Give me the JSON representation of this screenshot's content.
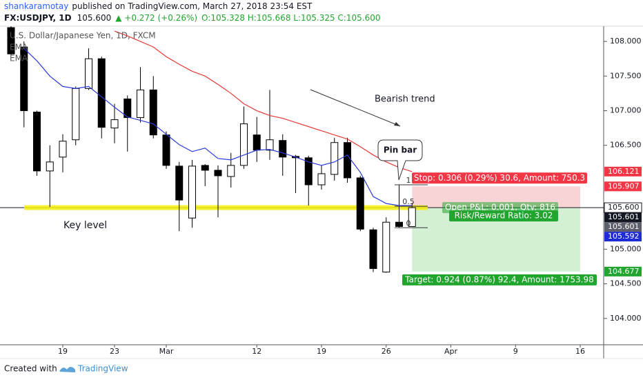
{
  "header": {
    "author": "shankaramotay",
    "published": "published on TradingView.com, March 27, 2018 23:54 EST",
    "symbol": "FX:USDJPY, 1D",
    "last": "105.600",
    "change": "▲ +0.272 (+0.26%)",
    "ohlc": "O:105.328 H:105.668 L:105.325 C:105.600"
  },
  "footer": {
    "created": "Created with",
    "brand": "TradingView"
  },
  "chart_data": {
    "type": "candlestick",
    "instrument": "U.S. Dollar/Japanese Yen, 1D, FXCM",
    "categories": [
      null,
      null,
      null,
      null,
      "19",
      null,
      null,
      null,
      "23",
      null,
      null,
      null,
      "Mar",
      null,
      null,
      null,
      null,
      null,
      null,
      "12",
      null,
      null,
      null,
      null,
      "19",
      null,
      null,
      null,
      null,
      "26",
      null,
      null,
      null,
      null,
      "Apr",
      null,
      null,
      null,
      null,
      "9",
      null,
      null,
      null,
      null,
      "16"
    ],
    "open": [
      108.2,
      107.92,
      106.98,
      106.13,
      106.33,
      106.58,
      107.32,
      107.75,
      106.75,
      107.17,
      106.9,
      107.3,
      106.65,
      106.2,
      105.45,
      106.21,
      106.14,
      106.05,
      106.21,
      106.65,
      106.43,
      106.57,
      106.34,
      106.32,
      105.93,
      106.08,
      106.54,
      106.03,
      105.28,
      104.67,
      105.39,
      105.328,
      null,
      null,
      null,
      null,
      null,
      null,
      null,
      null,
      null,
      null,
      null,
      null,
      null
    ],
    "high": [
      108.22,
      108.0,
      107.0,
      106.5,
      106.66,
      107.35,
      107.9,
      107.78,
      107.1,
      107.22,
      107.63,
      107.5,
      106.7,
      106.26,
      106.29,
      106.23,
      106.21,
      106.39,
      107.06,
      106.91,
      107.3,
      106.66,
      106.36,
      106.35,
      106.21,
      106.61,
      106.61,
      106.06,
      105.31,
      105.46,
      105.93,
      105.668,
      null,
      null,
      null,
      null,
      null,
      null,
      null,
      null,
      null,
      null,
      null,
      null,
      null
    ],
    "low": [
      107.8,
      106.76,
      106.06,
      105.61,
      106.11,
      106.5,
      107.3,
      106.6,
      106.53,
      106.41,
      106.83,
      106.6,
      106.16,
      105.26,
      105.31,
      105.91,
      105.46,
      105.89,
      106.16,
      106.26,
      106.29,
      106.06,
      105.81,
      105.63,
      105.86,
      105.99,
      105.96,
      105.26,
      104.67,
      104.66,
      105.31,
      105.325,
      null,
      null,
      null,
      null,
      null,
      null,
      null,
      null,
      null,
      null,
      null,
      null,
      null
    ],
    "close": [
      107.82,
      107.0,
      106.13,
      106.26,
      106.56,
      107.32,
      107.75,
      106.76,
      106.87,
      106.9,
      107.3,
      106.65,
      106.21,
      105.71,
      106.2,
      106.14,
      106.06,
      106.21,
      106.81,
      106.43,
      106.58,
      106.33,
      106.32,
      105.93,
      106.09,
      106.54,
      106.03,
      105.29,
      104.72,
      105.39,
      105.328,
      105.6,
      null,
      null,
      null,
      null,
      null,
      null,
      null,
      null,
      null,
      null,
      null,
      null,
      null
    ],
    "series": [
      {
        "name": "EMA",
        "color": "#2b3bd6",
        "values": [
          null,
          107.9,
          107.72,
          107.5,
          107.35,
          107.32,
          107.35,
          107.2,
          107.05,
          106.91,
          106.86,
          106.81,
          106.66,
          106.51,
          106.41,
          106.46,
          106.31,
          106.29,
          106.36,
          106.43,
          106.44,
          106.39,
          106.33,
          106.26,
          106.21,
          106.26,
          106.36,
          106.11,
          105.76,
          105.66,
          105.63,
          105.63,
          null,
          null,
          null,
          null,
          null,
          null,
          null,
          null,
          null,
          null,
          null,
          null,
          null
        ]
      },
      {
        "name": "EMA",
        "color": "#e53935",
        "values": [
          null,
          null,
          null,
          null,
          null,
          null,
          null,
          null,
          108.15,
          108.08,
          108.0,
          107.92,
          107.78,
          107.67,
          107.57,
          107.5,
          107.38,
          107.25,
          107.1,
          107.0,
          106.93,
          106.89,
          106.83,
          106.77,
          106.71,
          106.65,
          106.59,
          106.48,
          106.36,
          106.26,
          106.18,
          106.12,
          null,
          null,
          null,
          null,
          null,
          null,
          null,
          null,
          null,
          null,
          null,
          null,
          null
        ]
      }
    ],
    "ylim": [
      103.62,
      108.22
    ],
    "yticks": [
      {
        "value": 104,
        "label": "104.000"
      },
      {
        "value": 104.5,
        "label": "104.500"
      },
      {
        "value": 105,
        "label": "105.000"
      },
      {
        "value": 106.5,
        "label": "106.500"
      },
      {
        "value": 107,
        "label": "107.000"
      },
      {
        "value": 107.5,
        "label": "107.500"
      },
      {
        "value": 108,
        "label": "108.000"
      }
    ],
    "price_labels": [
      {
        "value": 106.121,
        "label": "106.121",
        "color": "#f23645"
      },
      {
        "value": 105.907,
        "label": "105.907",
        "color": "#f23645"
      },
      {
        "value": 105.6,
        "label": "105.600",
        "color": "#ffffff"
      },
      {
        "value": 105.601,
        "label": "105.601",
        "color": "#131722"
      },
      {
        "value": 105.601,
        "label": "105.601",
        "color": "#5d606b"
      },
      {
        "value": 105.592,
        "label": "105.592",
        "color": "#1e2bd6"
      },
      {
        "value": 104.677,
        "label": "104.677",
        "color": "#22a52f"
      }
    ],
    "key_level": {
      "text": "Key level",
      "value": 105.6
    },
    "trend_text": "Bearish trend",
    "callout": "Pin bar",
    "fib_levels": [
      1,
      0.5,
      0
    ],
    "position": {
      "entry": 105.6,
      "stop": 105.907,
      "target": 104.677,
      "stop_label": "Stop: 0.306 (0.29%) 30.6, Amount: 750.3",
      "pnl_label": "Open P&L: 0.001, Qty: 816",
      "rr_label": "Risk/Reward Ratio: 3.02",
      "target_label": "Target: 0.924 (0.87%) 92.4, Amount: 1753.98"
    }
  }
}
